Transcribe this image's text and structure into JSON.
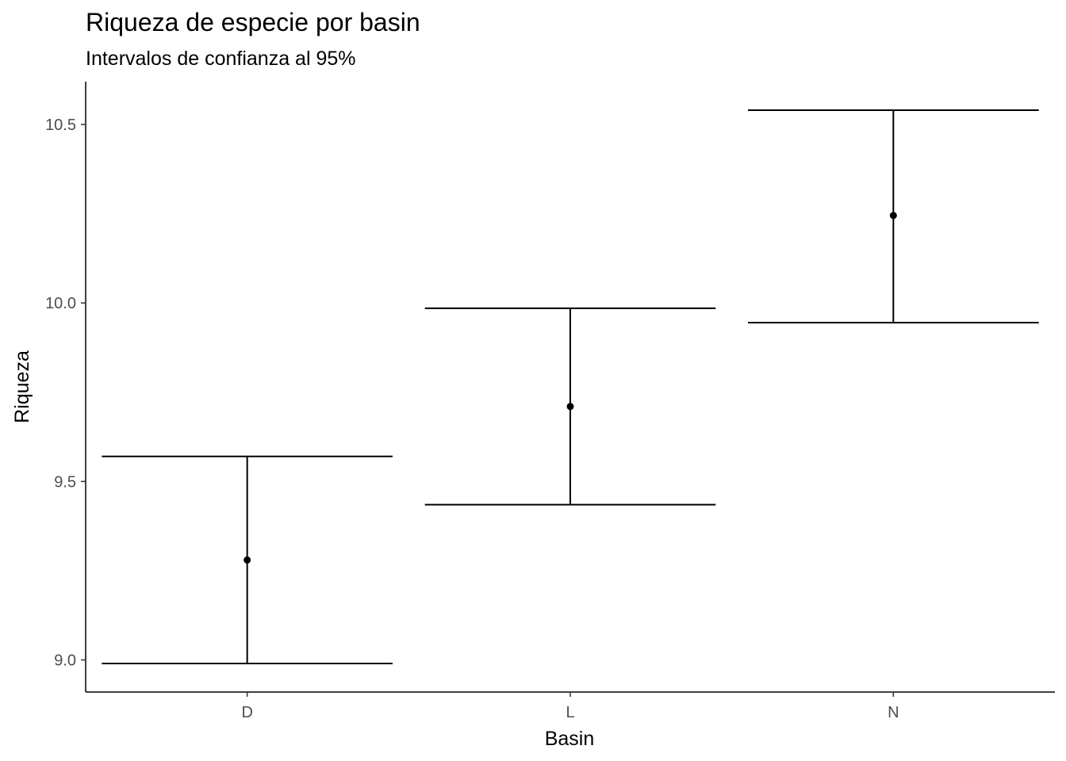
{
  "chart_data": {
    "type": "errorbar",
    "title": "Riqueza de especie por basin",
    "subtitle": "Intervalos de confianza al 95%",
    "xlabel": "Basin",
    "ylabel": "Riqueza",
    "categories": [
      "D",
      "L",
      "N"
    ],
    "points": [
      {
        "x": "D",
        "mean": 9.28,
        "lower": 8.99,
        "upper": 9.57
      },
      {
        "x": "L",
        "mean": 9.71,
        "lower": 9.435,
        "upper": 9.985
      },
      {
        "x": "N",
        "mean": 10.245,
        "lower": 9.945,
        "upper": 10.54
      }
    ],
    "yticks": [
      "9.0",
      "9.5",
      "10.0",
      "10.5"
    ],
    "ylim": [
      8.91,
      10.62
    ],
    "grid": false,
    "legend": "none"
  }
}
